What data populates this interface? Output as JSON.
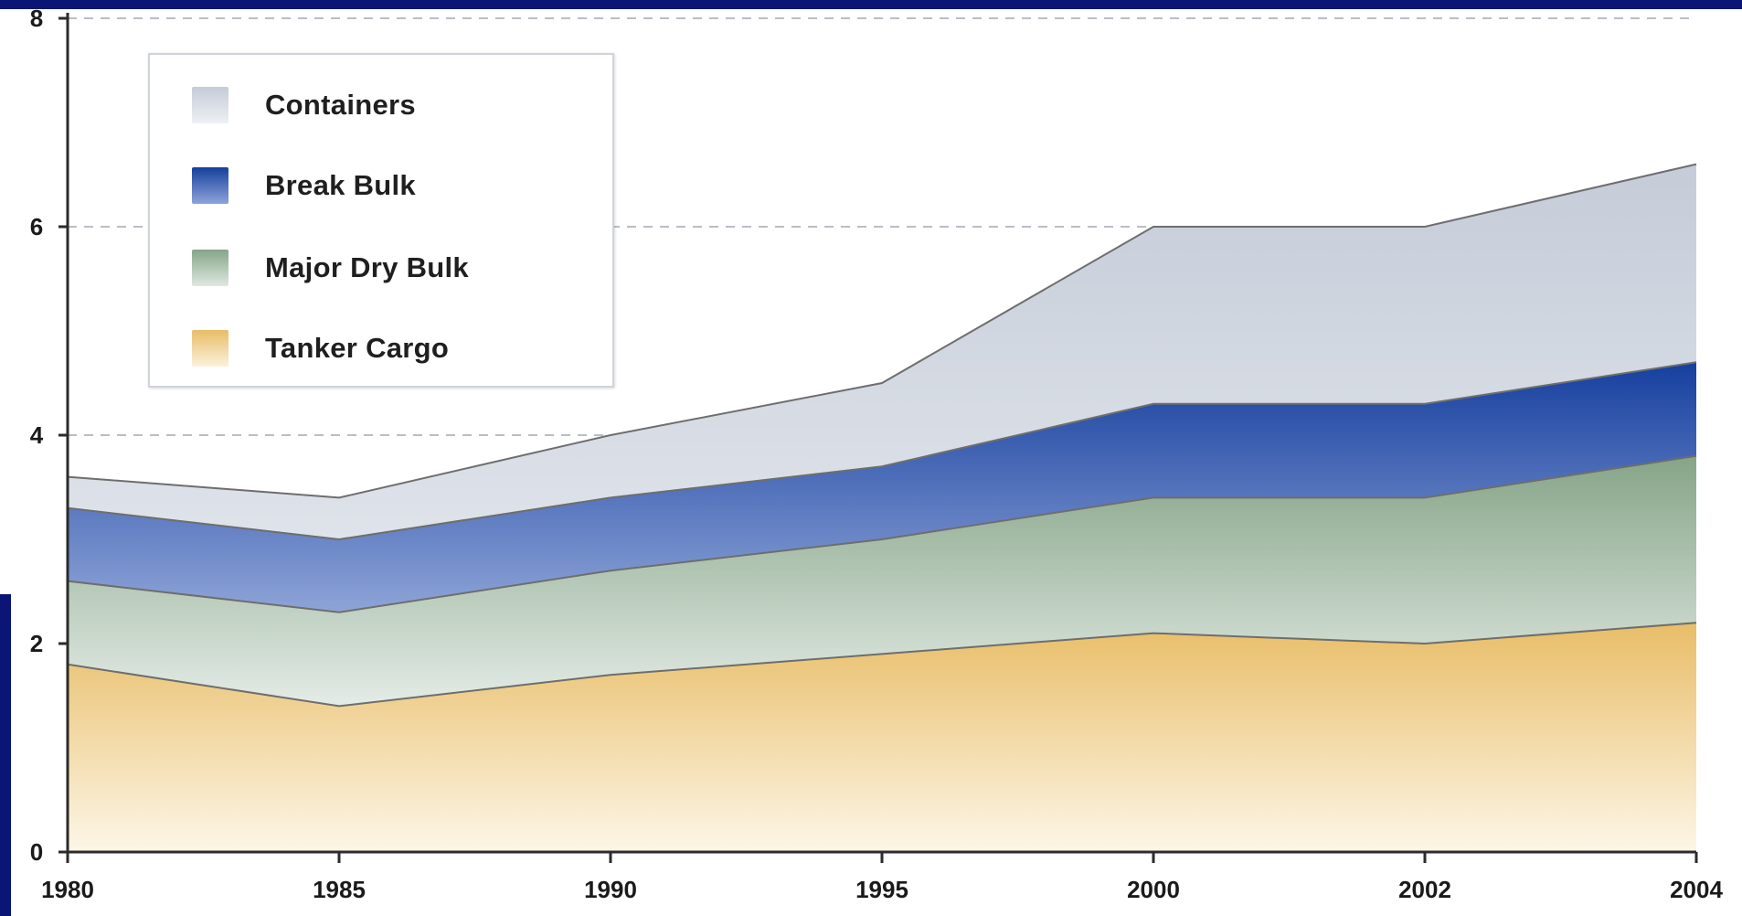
{
  "chart_data": {
    "type": "area",
    "stacked": true,
    "title": "",
    "xlabel": "",
    "ylabel": "",
    "x": [
      "1980",
      "1985",
      "1990",
      "1995",
      "2000",
      "2002",
      "2004"
    ],
    "x_tick_labels": [
      "1980",
      "1985",
      "1990",
      "1995",
      "2000",
      "2002",
      "2004"
    ],
    "y_tick_labels": [
      "0",
      "2",
      "4",
      "6",
      "8"
    ],
    "ylim": [
      0,
      8
    ],
    "grid": true,
    "legend_position": "top-left",
    "series": [
      {
        "name": "Tanker Cargo",
        "values": [
          1.8,
          1.4,
          1.7,
          1.9,
          2.1,
          2.0,
          2.2
        ],
        "color": "#e8bf6e"
      },
      {
        "name": "Major Dry Bulk",
        "values": [
          0.8,
          0.9,
          1.0,
          1.1,
          1.3,
          1.4,
          1.6
        ],
        "color": "#88a78a"
      },
      {
        "name": "Break Bulk",
        "values": [
          0.7,
          0.7,
          0.7,
          0.7,
          0.9,
          0.9,
          0.9
        ],
        "color": "#1c4aa8"
      },
      {
        "name": "Containers",
        "values": [
          0.3,
          0.4,
          0.6,
          0.8,
          1.7,
          1.7,
          1.9
        ],
        "color": "#c8ced9"
      }
    ],
    "legend_order": [
      "Containers",
      "Break Bulk",
      "Major Dry Bulk",
      "Tanker Cargo"
    ]
  }
}
